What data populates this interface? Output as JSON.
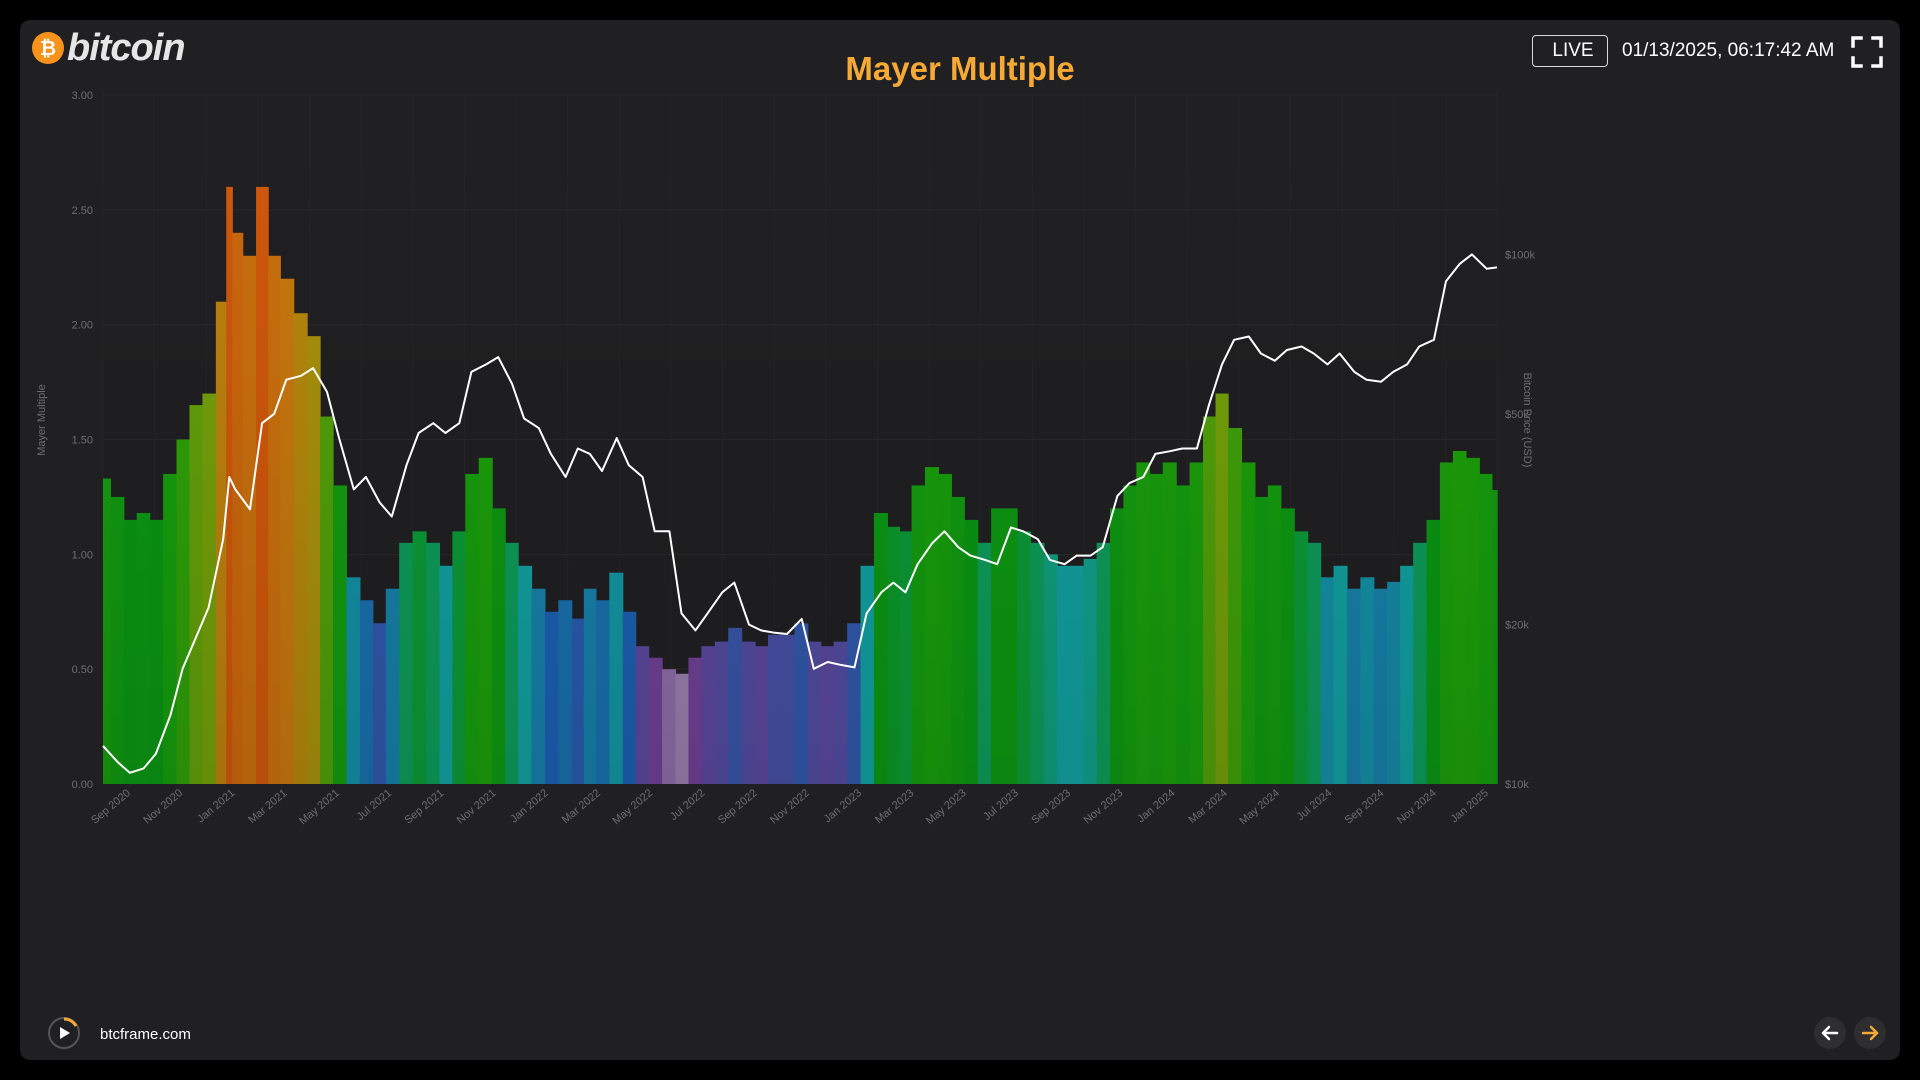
{
  "logo": {
    "symbol": "₿",
    "text": "bitcoin"
  },
  "header": {
    "title": "Mayer Multiple",
    "live_label": "LIVE",
    "timestamp": "01/13/2025, 06:17:42 AM"
  },
  "footer": {
    "site": "btcframe.com"
  },
  "colors": {
    "accent": "#f7a935",
    "background": "#202022",
    "price_line": "#ffffff"
  },
  "icons": {
    "logo": "bitcoin-coin-icon",
    "fullscreen": "fullscreen-icon",
    "play": "play-icon",
    "prev": "arrow-left-icon",
    "next": "arrow-right-icon"
  },
  "chart_data": {
    "type": "bar",
    "title": "Mayer Multiple",
    "ylabel": "Mayer Multiple",
    "y2label": "Bitcoin Price (USD)",
    "ylim": [
      0,
      3
    ],
    "y_ticks": [
      "0.00",
      "0.50",
      "1.00",
      "1.50",
      "2.00",
      "2.50",
      "3.00"
    ],
    "y2_scale": "log",
    "y2lim": [
      10000,
      200000
    ],
    "y2_ticks": [
      {
        "value": 10000,
        "label": "$10k"
      },
      {
        "value": 20000,
        "label": "$20k"
      },
      {
        "value": 50000,
        "label": "$50k"
      },
      {
        "value": 100000,
        "label": "$100k"
      }
    ],
    "x_ticks": [
      "Sep 2020",
      "Nov 2020",
      "Jan 2021",
      "Mar 2021",
      "May 2021",
      "Jul 2021",
      "Sep 2021",
      "Nov 2021",
      "Jan 2022",
      "Mar 2022",
      "May 2022",
      "Jul 2022",
      "Sep 2022",
      "Nov 2022",
      "Jan 2023",
      "Mar 2023",
      "May 2023",
      "Jul 2023",
      "Sep 2023",
      "Nov 2023",
      "Jan 2024",
      "Mar 2024",
      "May 2024",
      "Jul 2024",
      "Sep 2024",
      "Nov 2024",
      "Jan 2025"
    ],
    "grid": true,
    "x": [
      "2020-08-15",
      "2020-09-01",
      "2020-09-15",
      "2020-10-01",
      "2020-10-15",
      "2020-11-01",
      "2020-11-15",
      "2020-12-01",
      "2020-12-15",
      "2021-01-01",
      "2021-01-08",
      "2021-01-15",
      "2021-02-01",
      "2021-02-15",
      "2021-03-01",
      "2021-03-15",
      "2021-04-01",
      "2021-04-15",
      "2021-05-01",
      "2021-05-15",
      "2021-06-01",
      "2021-06-15",
      "2021-07-01",
      "2021-07-15",
      "2021-08-01",
      "2021-08-15",
      "2021-09-01",
      "2021-09-15",
      "2021-10-01",
      "2021-10-15",
      "2021-11-01",
      "2021-11-15",
      "2021-12-01",
      "2021-12-15",
      "2022-01-01",
      "2022-01-15",
      "2022-02-01",
      "2022-02-15",
      "2022-03-01",
      "2022-03-15",
      "2022-04-01",
      "2022-04-15",
      "2022-05-01",
      "2022-05-15",
      "2022-06-01",
      "2022-06-15",
      "2022-07-01",
      "2022-07-15",
      "2022-08-01",
      "2022-08-15",
      "2022-09-01",
      "2022-09-15",
      "2022-10-01",
      "2022-10-15",
      "2022-11-01",
      "2022-11-15",
      "2022-12-01",
      "2022-12-15",
      "2023-01-01",
      "2023-01-15",
      "2023-02-01",
      "2023-02-15",
      "2023-03-01",
      "2023-03-15",
      "2023-04-01",
      "2023-04-15",
      "2023-05-01",
      "2023-05-15",
      "2023-06-01",
      "2023-06-15",
      "2023-07-01",
      "2023-07-15",
      "2023-08-01",
      "2023-08-15",
      "2023-09-01",
      "2023-09-15",
      "2023-10-01",
      "2023-10-15",
      "2023-11-01",
      "2023-11-15",
      "2023-12-01",
      "2023-12-15",
      "2024-01-01",
      "2024-01-15",
      "2024-02-01",
      "2024-02-15",
      "2024-03-01",
      "2024-03-15",
      "2024-04-01",
      "2024-04-15",
      "2024-05-01",
      "2024-05-15",
      "2024-06-01",
      "2024-06-15",
      "2024-07-01",
      "2024-07-15",
      "2024-08-01",
      "2024-08-15",
      "2024-09-01",
      "2024-09-15",
      "2024-10-01",
      "2024-10-15",
      "2024-11-01",
      "2024-11-15",
      "2024-12-01",
      "2024-12-15",
      "2025-01-01",
      "2025-01-13"
    ],
    "series": [
      {
        "type": "bar",
        "values": [
          1.33,
          1.25,
          1.15,
          1.18,
          1.15,
          1.35,
          1.5,
          1.65,
          1.7,
          2.1,
          2.6,
          2.4,
          2.3,
          2.6,
          2.3,
          2.2,
          2.05,
          1.95,
          1.6,
          1.3,
          0.9,
          0.8,
          0.7,
          0.85,
          1.05,
          1.1,
          1.05,
          0.95,
          1.1,
          1.35,
          1.42,
          1.2,
          1.05,
          0.95,
          0.85,
          0.75,
          0.8,
          0.72,
          0.85,
          0.8,
          0.92,
          0.75,
          0.6,
          0.55,
          0.5,
          0.48,
          0.55,
          0.6,
          0.62,
          0.68,
          0.62,
          0.6,
          0.65,
          0.65,
          0.7,
          0.62,
          0.6,
          0.62,
          0.7,
          0.95,
          1.18,
          1.12,
          1.1,
          1.3,
          1.38,
          1.35,
          1.25,
          1.15,
          1.05,
          1.2,
          1.2,
          1.1,
          1.05,
          1.0,
          0.95,
          0.95,
          0.98,
          1.05,
          1.2,
          1.3,
          1.4,
          1.35,
          1.4,
          1.3,
          1.4,
          1.6,
          1.7,
          1.55,
          1.4,
          1.25,
          1.3,
          1.2,
          1.1,
          1.05,
          0.9,
          0.95,
          0.85,
          0.9,
          0.85,
          0.88,
          0.95,
          1.05,
          1.15,
          1.4,
          1.45,
          1.42,
          1.35,
          1.28
        ]
      },
      {
        "type": "line",
        "axis": "y2",
        "values": [
          11800,
          11000,
          10500,
          10700,
          11400,
          13500,
          16500,
          19000,
          21500,
          29000,
          38000,
          36000,
          33000,
          48000,
          50000,
          58000,
          59000,
          61000,
          55000,
          45000,
          36000,
          38000,
          34000,
          32000,
          40000,
          46000,
          48000,
          46000,
          48000,
          60000,
          62000,
          64000,
          57000,
          49000,
          47000,
          42000,
          38000,
          43000,
          42000,
          39000,
          45000,
          40000,
          38000,
          30000,
          30000,
          21000,
          19500,
          21000,
          23000,
          24000,
          20000,
          19500,
          19300,
          19200,
          20500,
          16500,
          17000,
          16800,
          16600,
          21000,
          23000,
          24000,
          23000,
          26000,
          28500,
          30000,
          28000,
          27000,
          26500,
          26000,
          30500,
          30000,
          29000,
          26500,
          26000,
          27000,
          27000,
          28000,
          35000,
          37000,
          38000,
          42000,
          42500,
          43000,
          43000,
          52000,
          62000,
          69000,
          70000,
          65000,
          63000,
          66000,
          67000,
          65000,
          62000,
          65000,
          60000,
          58000,
          57500,
          60000,
          62000,
          67000,
          69000,
          89000,
          96000,
          100000,
          94000,
          94500
        ]
      }
    ]
  }
}
